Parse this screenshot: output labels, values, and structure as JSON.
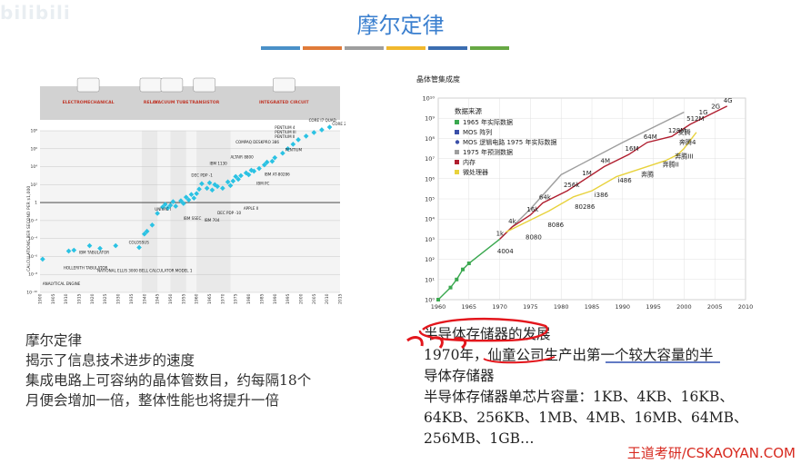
{
  "watermark": "bilibili",
  "slide": {
    "title": "摩尔定律",
    "accent_colors": [
      "#4a90c8",
      "#e07b39",
      "#9e9e9e",
      "#f1b82d",
      "#3b6db0",
      "#67a844"
    ]
  },
  "left_chart": {
    "ylabel": "CALCULATIONS PER SECOND PER $1,000",
    "yticks": [
      "10⁸",
      "10⁶",
      "10⁴",
      "10²",
      "1",
      "10⁻²",
      "10⁻⁴",
      "10⁻⁶",
      "10⁻⁸",
      "10⁻¹⁰"
    ],
    "xticks": [
      "1900",
      "1905",
      "1910",
      "1915",
      "1920",
      "1925",
      "1930",
      "1935",
      "1940",
      "1945",
      "1950",
      "1955",
      "1960",
      "1965",
      "1970",
      "1975",
      "1980",
      "1985",
      "1990",
      "1995",
      "2000",
      "2005",
      "2010",
      "2015"
    ],
    "eras": [
      {
        "label": "ELECTROMECHANICAL",
        "icon": "calculator-icon"
      },
      {
        "label": "RELAY",
        "icon": "relay-icon"
      },
      {
        "label": "VACUUM TUBE",
        "icon": "vacuum-tube-icon"
      },
      {
        "label": "TRANSISTOR",
        "icon": "transistor-icon"
      },
      {
        "label": "INTEGRATED CIRCUIT",
        "icon": "chip-icon"
      }
    ],
    "annotations": [
      "ANALYTICAL ENGINE",
      "HOLLERITH TABULATOR",
      "IBM TABULATOR",
      "NATIONAL ELLIS 3000",
      "COLOSSUS",
      "BELL CALCULATOR MODEL 1",
      "UNIVAC I",
      "IBM SSEC",
      "IBM 704",
      "DEC PDP -1",
      "IBM 1130",
      "DEC PDP -10",
      "ALTAIR 8800",
      "COMPAQ DESKPRO 386",
      "APPLE II",
      "IBM PC",
      "IBM AT-80286",
      "PENTIUM",
      "PENTIUM II",
      "PENTIUM III",
      "PENTIUM 4",
      "CORE 2",
      "CORE I7 QUAD"
    ]
  },
  "right_chart": {
    "title": "晶体管集成度",
    "legend_title": "数据来源",
    "legend": [
      {
        "label": "1965 年实际数据",
        "color": "#3aa84f",
        "shape": "square"
      },
      {
        "label": "MOS 阵列",
        "color": "#3a4fa8",
        "shape": "square"
      },
      {
        "label": "MOS 逻辑电路  1975 年实际数据",
        "color": "#3a4fa8",
        "shape": "dot"
      },
      {
        "label": "1975 年预测数据",
        "color": "#9e9e9e",
        "shape": "square"
      },
      {
        "label": "内存",
        "color": "#b01e2f",
        "shape": "square"
      },
      {
        "label": "微处理器",
        "color": "#e8d23c",
        "shape": "square"
      }
    ],
    "yticks": [
      "10¹⁰",
      "10⁹",
      "10⁸",
      "10⁷",
      "10⁶",
      "10⁵",
      "10⁴",
      "10³",
      "10²",
      "10¹",
      "10⁰"
    ],
    "xticks": [
      "1960",
      "1965",
      "1970",
      "1975",
      "1980",
      "1985",
      "1990",
      "1995",
      "2000",
      "2005",
      "2010"
    ],
    "memory_labels": [
      "1k",
      "4k",
      "16k",
      "64k",
      "256k",
      "1M",
      "4M",
      "16M",
      "64M",
      "128M",
      "512M",
      "1G",
      "2G",
      "4G"
    ],
    "cpu_labels": [
      "4004",
      "8080",
      "8086",
      "80286",
      "i386",
      "i486",
      "奔腾",
      "奔腾II",
      "奔腾III",
      "奔腾4",
      "安腾"
    ]
  },
  "left_text": [
    "摩尔定律",
    "揭示了信息技术进步的速度",
    "集成电路上可容纳的晶体管数目，约每隔18个",
    "月便会增加一倍，整体性能也将提升一倍"
  ],
  "right_text": [
    "半导体存储器的发展",
    "1970年，仙童公司生产出第一个较大容量的半",
    "导体存储器",
    "半导体存储器单芯片容量：1KB、4KB、16KB、",
    "64KB、256KB、1MB、4MB、16MB、64MB、",
    "256MB、1GB…"
  ],
  "brand": "王道考研/CSKAOYAN.COM"
}
